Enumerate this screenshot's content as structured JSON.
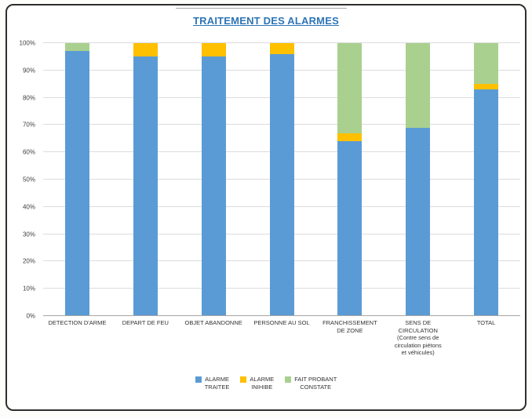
{
  "page": {
    "kind": "scanned-excel-chart"
  },
  "colors": {
    "title": "#2E75B6",
    "series_blue": "#5B9BD5",
    "series_yellow": "#FFC000",
    "series_green": "#A9D08E",
    "gridline": "#DCDCDC",
    "axis_text": "#404040",
    "frame_border": "#2E2E2E"
  },
  "chart_data": {
    "type": "bar",
    "stacked": true,
    "title": "TRAITEMENT DES ALARMES",
    "xlabel": "",
    "ylabel": "",
    "ylim": [
      0,
      100
    ],
    "grid": true,
    "legend_position": "bottom",
    "yticks": [
      "0%",
      "10%",
      "20%",
      "30%",
      "40%",
      "50%",
      "60%",
      "70%",
      "80%",
      "90%",
      "100%"
    ],
    "categories": [
      "DETECTION D'ARME",
      "DEPART DE FEU",
      "OBJET ABANDONNE",
      "PERSONNE AU SOL",
      "FRANCHISSEMENT\nDE ZONE",
      "SENS DE\nCIRCULATION\n(Contre sens de\ncirculation piétons\net véhicules)",
      "TOTAL"
    ],
    "series": [
      {
        "key": "alarme-traitee",
        "name": "ALARME\nTRAITEE",
        "color": "#5B9BD5",
        "values": [
          97,
          95,
          95,
          96,
          64,
          69,
          83
        ]
      },
      {
        "key": "alarme-inihibe",
        "name": "ALARME\nINIHIBE",
        "color": "#FFC000",
        "values": [
          0,
          5,
          5,
          4,
          3,
          0,
          2
        ]
      },
      {
        "key": "fait-probant-constate",
        "name": "FAIT PROBANT\nCONSTATE",
        "color": "#A9D08E",
        "values": [
          3,
          0,
          0,
          0,
          33,
          31,
          15
        ]
      }
    ]
  }
}
